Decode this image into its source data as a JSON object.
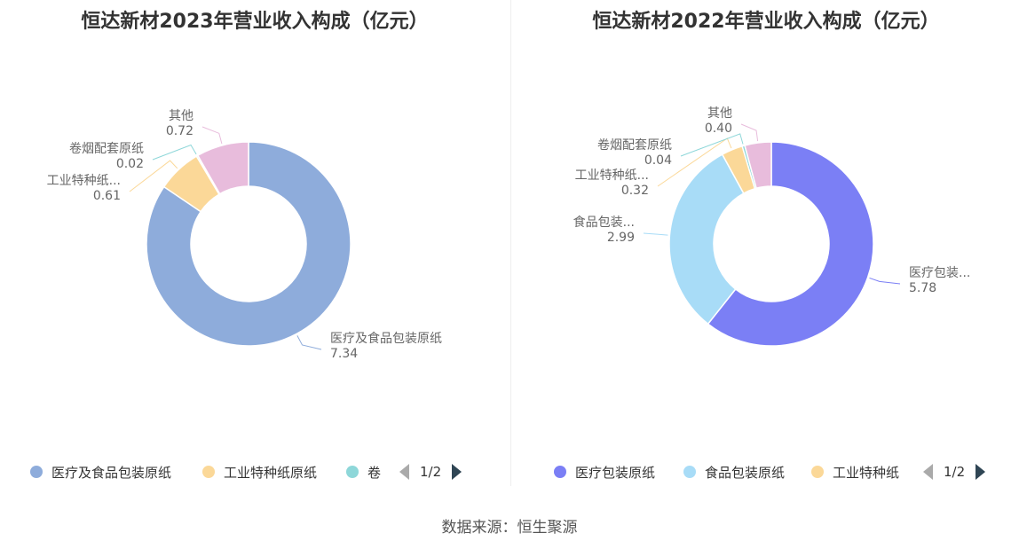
{
  "source_text": "数据来源：恒生聚源",
  "chart_data": [
    {
      "type": "pie",
      "title": "恒达新材2023年营业收入构成（亿元）",
      "series": [
        {
          "name": "医疗及食品包装原纸",
          "value": 7.34,
          "label": "医疗及食品包装原纸",
          "value_label": "7.34",
          "color": "#8eacdb"
        },
        {
          "name": "工业特种纸原纸",
          "value": 0.61,
          "label": "工业特种纸...",
          "value_label": "0.61",
          "color": "#fbd898"
        },
        {
          "name": "卷烟配套原纸",
          "value": 0.02,
          "label": "卷烟配套原纸",
          "value_label": "0.02",
          "color": "#8ed7d9"
        },
        {
          "name": "其他",
          "value": 0.72,
          "label": "其他",
          "value_label": "0.72",
          "color": "#e8bcdc"
        }
      ],
      "legend": {
        "items": [
          {
            "label": "医疗及食品包装原纸",
            "color": "#8eacdb"
          },
          {
            "label": "工业特种纸原纸",
            "color": "#fbd898"
          },
          {
            "label": "卷",
            "color": "#8ed7d9"
          }
        ],
        "page": "1/2"
      }
    },
    {
      "type": "pie",
      "title": "恒达新材2022年营业收入构成（亿元）",
      "series": [
        {
          "name": "医疗包装原纸",
          "value": 5.78,
          "label": "医疗包装...",
          "value_label": "5.78",
          "color": "#7b7ff5"
        },
        {
          "name": "食品包装原纸",
          "value": 2.99,
          "label": "食品包装...",
          "value_label": "2.99",
          "color": "#a8dcf7"
        },
        {
          "name": "工业特种纸",
          "value": 0.32,
          "label": "工业特种纸...",
          "value_label": "0.32",
          "color": "#fbd898"
        },
        {
          "name": "卷烟配套原纸",
          "value": 0.04,
          "label": "卷烟配套原纸",
          "value_label": "0.04",
          "color": "#8ed7d9"
        },
        {
          "name": "其他",
          "value": 0.4,
          "label": "其他",
          "value_label": "0.40",
          "color": "#e8bcdc"
        }
      ],
      "legend": {
        "items": [
          {
            "label": "医疗包装原纸",
            "color": "#7b7ff5"
          },
          {
            "label": "食品包装原纸",
            "color": "#a8dcf7"
          },
          {
            "label": "工业特种纸",
            "color": "#fbd898"
          }
        ],
        "page": "1/2"
      }
    }
  ]
}
